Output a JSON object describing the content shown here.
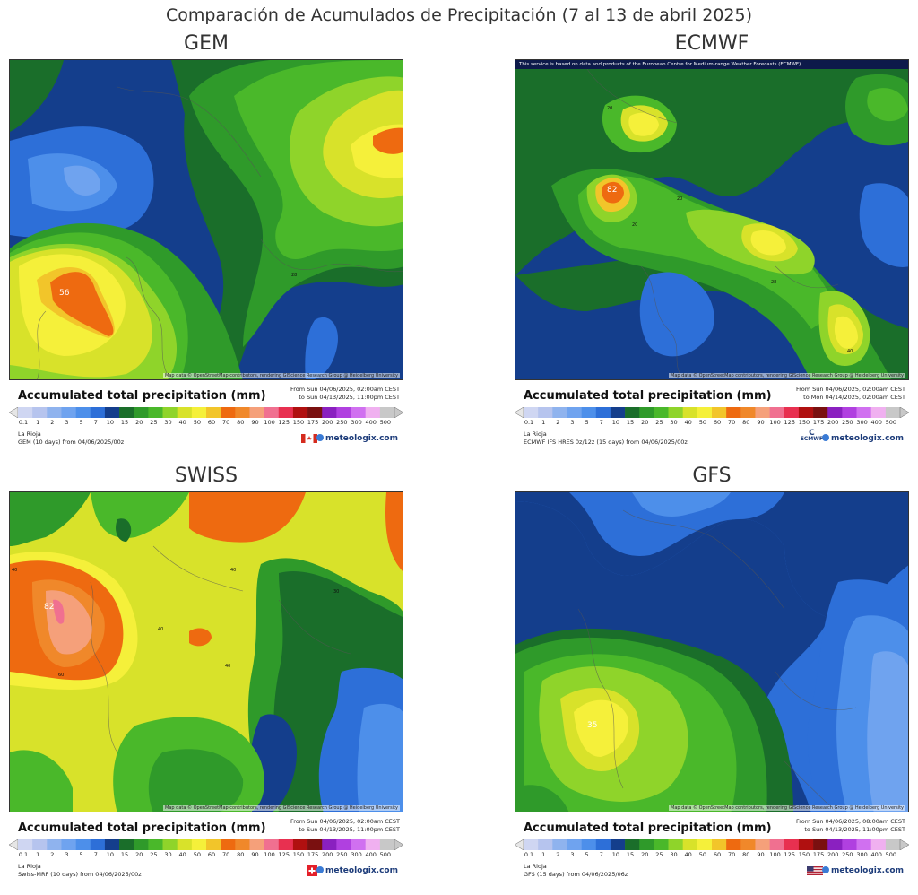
{
  "title": "Comparación de Acumulados de Precipitación (7 al 13 de abril 2025)",
  "scale": {
    "ticks": [
      "0.1",
      "1",
      "2",
      "3",
      "5",
      "7",
      "10",
      "15",
      "20",
      "25",
      "30",
      "40",
      "50",
      "60",
      "70",
      "80",
      "90",
      "100",
      "125",
      "150",
      "175",
      "200",
      "250",
      "300",
      "400",
      "500"
    ],
    "colors": [
      "#e6e6e6",
      "#cfd6f2",
      "#b6c4ee",
      "#8fb3ee",
      "#6fa3ef",
      "#4d8fea",
      "#2d6fd8",
      "#143e8c",
      "#1a6e2a",
      "#2f9a2a",
      "#4ab82a",
      "#8fd42a",
      "#d8e22a",
      "#f5f03a",
      "#f2c52a",
      "#ee6a10",
      "#f0882a",
      "#f5a07a",
      "#f07090",
      "#e83050",
      "#b01010",
      "#7a1010",
      "#8a20c0",
      "#b040e0",
      "#d070f0",
      "#f0b0f0",
      "#c8c8c8"
    ]
  },
  "panels": [
    {
      "id": "gem",
      "title": "GEM",
      "legend_title": "Accumulated total precipitation (mm)",
      "dates_line1": "From Sun 04/06/2025, 02:00am CEST",
      "dates_line2": "to Sun 04/13/2025, 11:00pm CEST",
      "location": "La Rioja",
      "model": "GEM (10 days) from 04/06/2025/00z",
      "logo": "meteologix.com",
      "attribution": "Map data © OpenStreetMap contributors, rendering GIScience Research Group @ Heidelberg University",
      "labels": [
        {
          "text": "56"
        },
        {
          "text": "28"
        }
      ],
      "flag": "canada"
    },
    {
      "id": "ecmwf",
      "title": "ECMWF",
      "notice": "This service is based on data and products of the European Centre for Medium-range Weather Forecasts (ECMWF)",
      "legend_title": "Accumulated total precipitation (mm)",
      "dates_line1": "From Sun 04/06/2025, 02:00am CEST",
      "dates_line2": "to Mon 04/14/2025, 02:00am CEST",
      "location": "La Rioja",
      "model": "ECMWF IFS HRES 0z/12z (15 days) from 04/06/2025/00z",
      "logo": "meteologix.com",
      "attribution": "Map data © OpenStreetMap contributors, rendering GIScience Research Group @ Heidelberg University",
      "labels": [
        {
          "text": "82"
        },
        {
          "text": "20"
        },
        {
          "text": "20"
        },
        {
          "text": "20"
        },
        {
          "text": "28"
        },
        {
          "text": "40"
        }
      ],
      "flag": "ecmwf",
      "ecmwf_text": "ECMWF"
    },
    {
      "id": "swiss",
      "title": "SWISS",
      "legend_title": "Accumulated total precipitation (mm)",
      "dates_line1": "From Sun 04/06/2025, 02:00am CEST",
      "dates_line2": "to Sun 04/13/2025, 11:00pm CEST",
      "location": "La Rioja",
      "model": "Swiss-MRF (10 days) from 04/06/2025/00z",
      "logo": "meteologix.com",
      "attribution": "Map data © OpenStreetMap contributors, rendering GIScience Research Group @ Heidelberg University",
      "labels": [
        {
          "text": "82"
        },
        {
          "text": "40"
        },
        {
          "text": "40"
        },
        {
          "text": "40"
        },
        {
          "text": "40"
        },
        {
          "text": "60"
        },
        {
          "text": "30"
        }
      ],
      "flag": "switzerland"
    },
    {
      "id": "gfs",
      "title": "GFS",
      "legend_title": "Accumulated total precipitation (mm)",
      "dates_line1": "From Sun 04/06/2025, 08:00am CEST",
      "dates_line2": "to Sun 04/13/2025, 11:00pm CEST",
      "location": "La Rioja",
      "model": "GFS (15 days) from 04/06/2025/06z",
      "logo": "meteologix.com",
      "attribution": "Map data © OpenStreetMap contributors, rendering GIScience Research Group @ Heidelberg University",
      "labels": [
        {
          "text": "35"
        }
      ],
      "flag": "usa"
    }
  ]
}
